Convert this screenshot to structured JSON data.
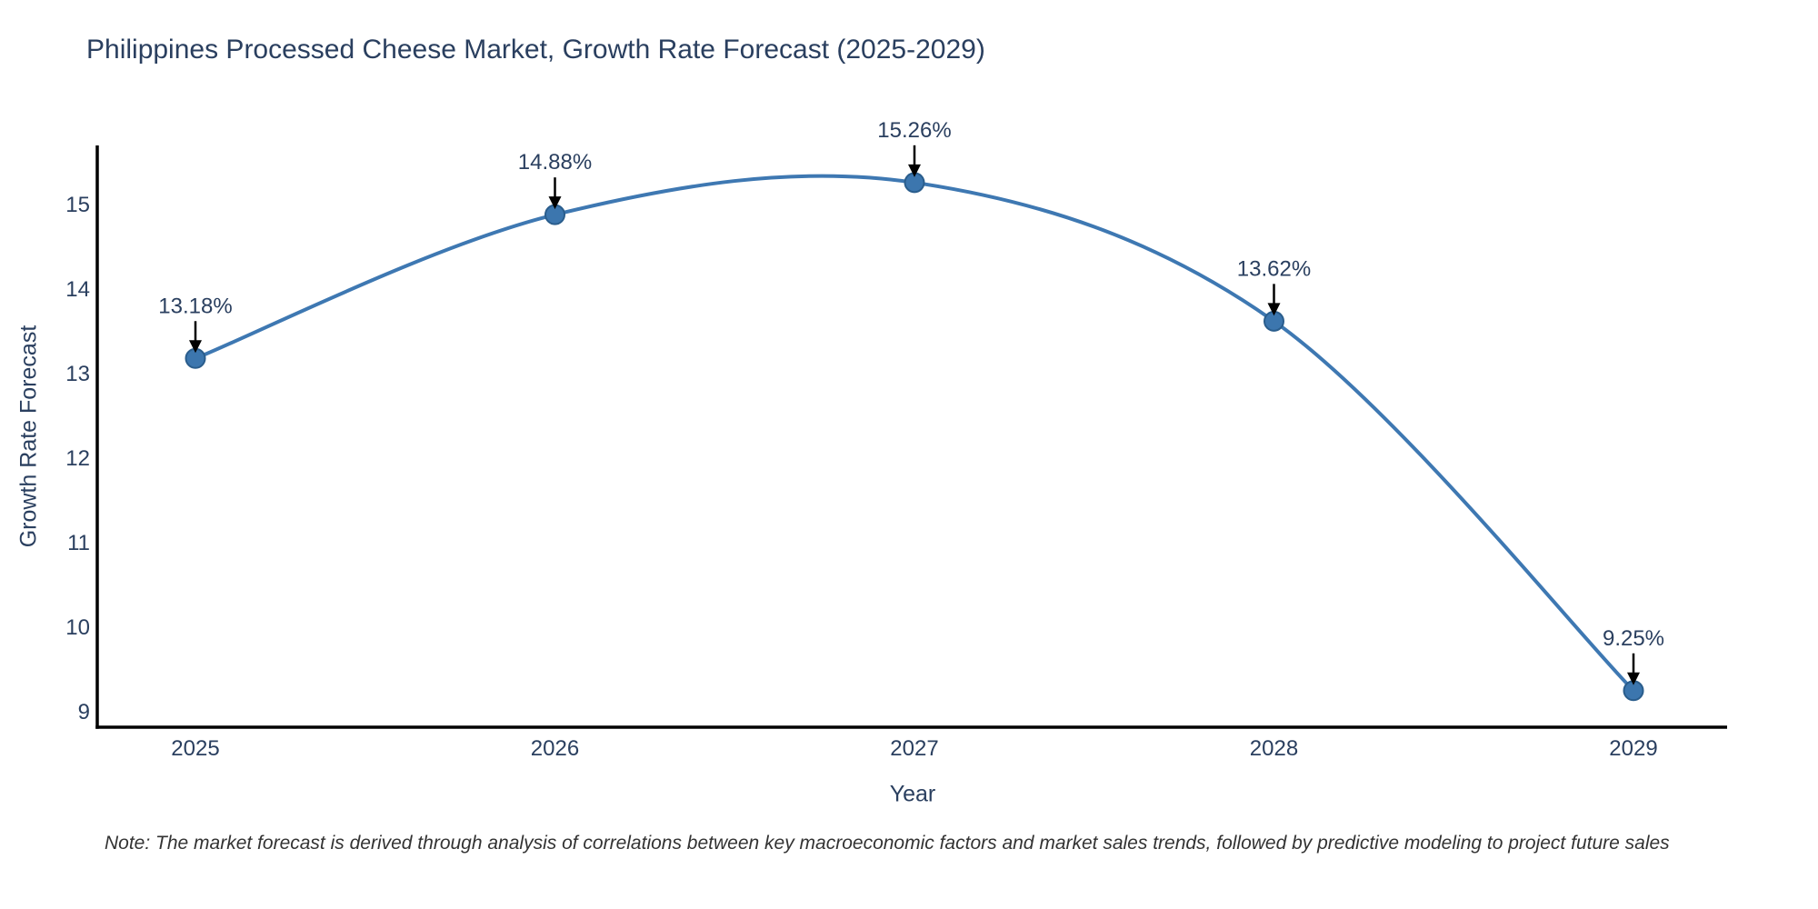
{
  "chart": {
    "title": "Philippines Processed Cheese Market, Growth Rate Forecast (2025-2029)",
    "xlabel": "Year",
    "ylabel": "Growth Rate Forecast",
    "note": "Note: The market forecast is derived through analysis of correlations between key macroeconomic factors and market sales trends, followed by predictive modeling to project future sales"
  },
  "chart_data": {
    "type": "line",
    "title": "Philippines Processed Cheese Market, Growth Rate Forecast (2025-2029)",
    "xlabel": "Year",
    "ylabel": "Growth Rate Forecast",
    "x": [
      2025,
      2026,
      2027,
      2028,
      2029
    ],
    "y": [
      13.18,
      14.88,
      15.26,
      13.62,
      9.25
    ],
    "point_labels": [
      "13.18%",
      "14.88%",
      "15.26%",
      "13.62%",
      "9.25%"
    ],
    "x_tick_labels": [
      "2025",
      "2026",
      "2027",
      "2028",
      "2029"
    ],
    "y_ticks": [
      9,
      10,
      11,
      12,
      13,
      14,
      15
    ],
    "ylim": [
      8.8,
      15.7
    ],
    "line_shape": "spline",
    "grid": false,
    "legend": false,
    "colors": {
      "line": "#3e78b2",
      "marker_fill": "#3c76ae",
      "marker_edge": "#2a5d8c",
      "axis": "#000000",
      "tick_text": "#2a3f5f",
      "annotation_text": "#2a3f5f",
      "annotation_arrow": "#000000",
      "note_text": "#333333"
    }
  }
}
